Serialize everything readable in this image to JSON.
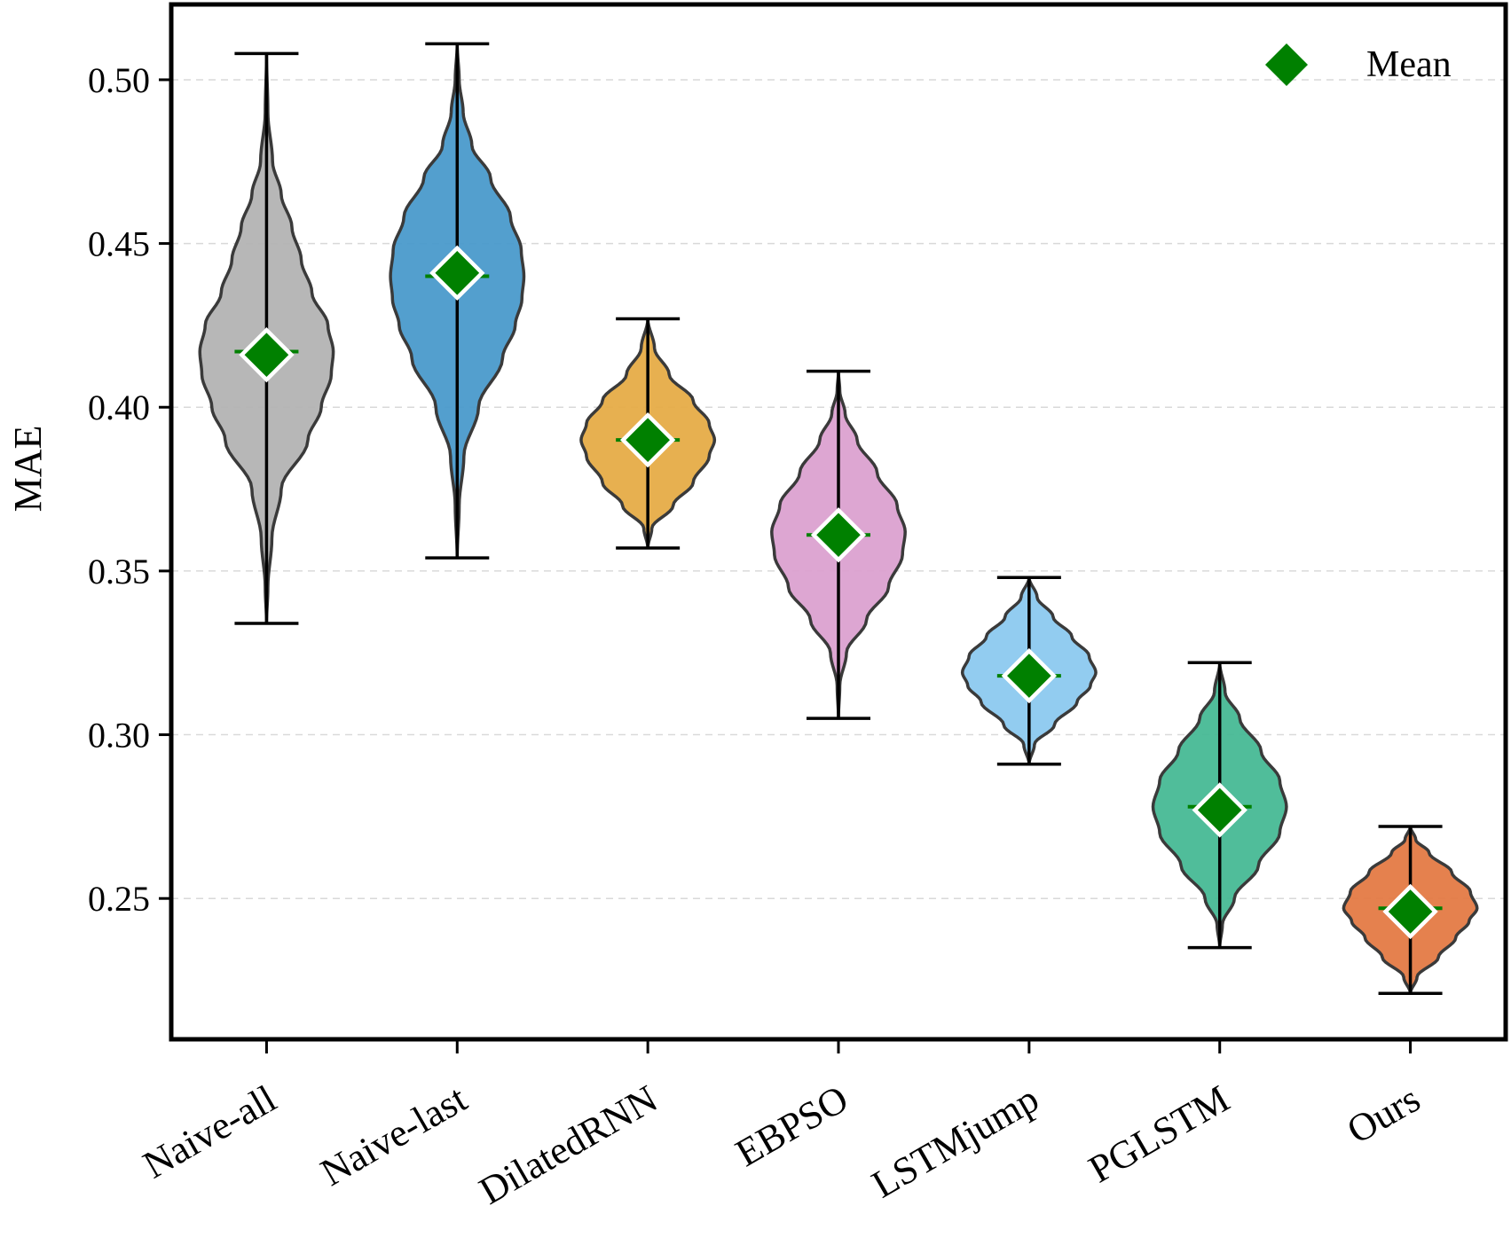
{
  "chart_data": {
    "type": "violin",
    "title": "",
    "xlabel": "",
    "ylabel": "MAE",
    "ylim": [
      0.207,
      0.523
    ],
    "yticks": [
      0.25,
      0.3,
      0.35,
      0.4,
      0.45,
      0.5
    ],
    "ytick_labels": [
      "0.25",
      "0.30",
      "0.35",
      "0.40",
      "0.45",
      "0.50"
    ],
    "grid": "horizontal dashed",
    "legend": {
      "position": "top-right",
      "entries": [
        {
          "label": "Mean",
          "marker": "diamond",
          "color": "#008000"
        }
      ]
    },
    "mean_color": "#008000",
    "series": [
      {
        "name": "Naive-all",
        "color": "#B3B3B3",
        "min": 0.334,
        "max": 0.508,
        "mean": 0.416,
        "median": 0.417,
        "sigma": 0.03,
        "width": 0.32,
        "profile": [
          [
            0.334,
            0.0
          ],
          [
            0.345,
            0.02
          ],
          [
            0.36,
            0.08
          ],
          [
            0.375,
            0.22
          ],
          [
            0.39,
            0.62
          ],
          [
            0.4,
            0.82
          ],
          [
            0.41,
            0.97
          ],
          [
            0.417,
            1.0
          ],
          [
            0.425,
            0.92
          ],
          [
            0.435,
            0.68
          ],
          [
            0.445,
            0.52
          ],
          [
            0.455,
            0.38
          ],
          [
            0.465,
            0.22
          ],
          [
            0.475,
            0.09
          ],
          [
            0.49,
            0.02
          ],
          [
            0.508,
            0.0
          ]
        ]
      },
      {
        "name": "Naive-last",
        "color": "#4A9ACB",
        "min": 0.354,
        "max": 0.511,
        "mean": 0.441,
        "median": 0.44,
        "sigma": 0.026,
        "width": 0.32,
        "profile": [
          [
            0.354,
            0.0
          ],
          [
            0.37,
            0.03
          ],
          [
            0.385,
            0.1
          ],
          [
            0.4,
            0.32
          ],
          [
            0.415,
            0.68
          ],
          [
            0.425,
            0.87
          ],
          [
            0.433,
            0.97
          ],
          [
            0.44,
            1.0
          ],
          [
            0.448,
            0.96
          ],
          [
            0.458,
            0.8
          ],
          [
            0.47,
            0.5
          ],
          [
            0.48,
            0.22
          ],
          [
            0.49,
            0.09
          ],
          [
            0.5,
            0.03
          ],
          [
            0.511,
            0.0
          ]
        ]
      },
      {
        "name": "DilatedRNN",
        "color": "#E6AC47",
        "min": 0.357,
        "max": 0.427,
        "mean": 0.39,
        "median": 0.39,
        "sigma": 0.013,
        "width": 0.32,
        "profile": [
          [
            0.357,
            0.0
          ],
          [
            0.363,
            0.06
          ],
          [
            0.37,
            0.38
          ],
          [
            0.377,
            0.68
          ],
          [
            0.385,
            0.92
          ],
          [
            0.39,
            1.0
          ],
          [
            0.395,
            0.92
          ],
          [
            0.402,
            0.68
          ],
          [
            0.41,
            0.32
          ],
          [
            0.418,
            0.1
          ],
          [
            0.427,
            0.0
          ]
        ]
      },
      {
        "name": "EBPSO",
        "color": "#DBA1D0",
        "min": 0.305,
        "max": 0.411,
        "mean": 0.361,
        "median": 0.361,
        "sigma": 0.019,
        "width": 0.32,
        "profile": [
          [
            0.305,
            0.0
          ],
          [
            0.315,
            0.02
          ],
          [
            0.325,
            0.12
          ],
          [
            0.335,
            0.42
          ],
          [
            0.345,
            0.75
          ],
          [
            0.355,
            0.96
          ],
          [
            0.362,
            1.0
          ],
          [
            0.37,
            0.88
          ],
          [
            0.38,
            0.58
          ],
          [
            0.39,
            0.28
          ],
          [
            0.398,
            0.1
          ],
          [
            0.405,
            0.02
          ],
          [
            0.411,
            0.0
          ]
        ]
      },
      {
        "name": "LSTMjump",
        "color": "#8CC9EF",
        "min": 0.291,
        "max": 0.348,
        "mean": 0.318,
        "median": 0.318,
        "sigma": 0.01,
        "width": 0.32,
        "profile": [
          [
            0.291,
            0.0
          ],
          [
            0.297,
            0.08
          ],
          [
            0.303,
            0.38
          ],
          [
            0.31,
            0.72
          ],
          [
            0.315,
            0.92
          ],
          [
            0.319,
            1.0
          ],
          [
            0.324,
            0.9
          ],
          [
            0.33,
            0.64
          ],
          [
            0.336,
            0.36
          ],
          [
            0.342,
            0.12
          ],
          [
            0.348,
            0.0
          ]
        ]
      },
      {
        "name": "PGLSTM",
        "color": "#47B995",
        "min": 0.235,
        "max": 0.322,
        "mean": 0.277,
        "median": 0.278,
        "sigma": 0.016,
        "width": 0.32,
        "profile": [
          [
            0.235,
            0.0
          ],
          [
            0.242,
            0.04
          ],
          [
            0.25,
            0.22
          ],
          [
            0.26,
            0.58
          ],
          [
            0.27,
            0.9
          ],
          [
            0.278,
            1.0
          ],
          [
            0.286,
            0.9
          ],
          [
            0.295,
            0.62
          ],
          [
            0.305,
            0.3
          ],
          [
            0.313,
            0.08
          ],
          [
            0.322,
            0.0
          ]
        ]
      },
      {
        "name": "Ours",
        "color": "#E47A45",
        "min": 0.221,
        "max": 0.272,
        "mean": 0.246,
        "median": 0.247,
        "sigma": 0.008,
        "width": 0.32,
        "profile": [
          [
            0.221,
            0.0
          ],
          [
            0.226,
            0.1
          ],
          [
            0.232,
            0.42
          ],
          [
            0.238,
            0.68
          ],
          [
            0.243,
            0.88
          ],
          [
            0.247,
            1.0
          ],
          [
            0.252,
            0.9
          ],
          [
            0.258,
            0.62
          ],
          [
            0.264,
            0.28
          ],
          [
            0.268,
            0.08
          ],
          [
            0.272,
            0.0
          ]
        ]
      }
    ]
  }
}
